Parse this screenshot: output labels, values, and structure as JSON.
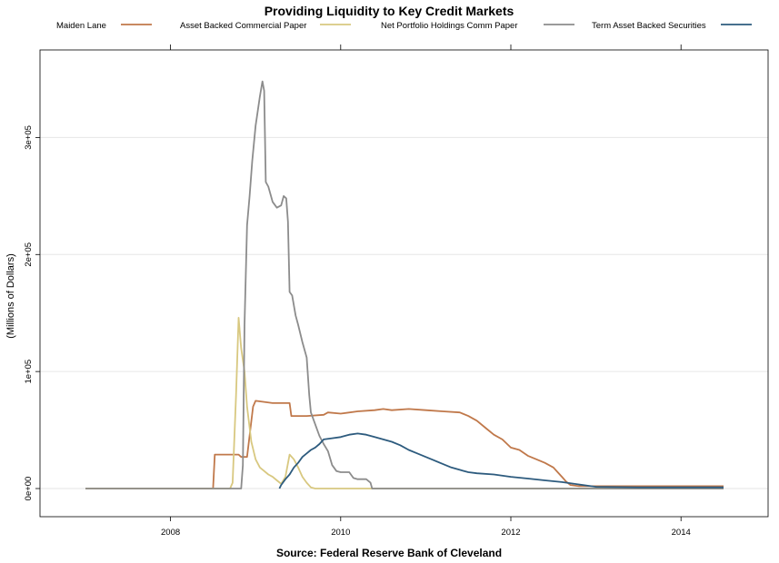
{
  "chart_data": {
    "type": "line",
    "title": "Providing Liquidity to Key Credit Markets",
    "ylabel": "(Millions of Dollars)",
    "source": "Source: Federal Reserve Bank of Cleveland",
    "xlim": [
      2007.0,
      2014.5
    ],
    "ylim": [
      0,
      350000
    ],
    "x_ticks": [
      {
        "value": 2008,
        "label": "2008"
      },
      {
        "value": 2010,
        "label": "2010"
      },
      {
        "value": 2012,
        "label": "2012"
      },
      {
        "value": 2014,
        "label": "2014"
      }
    ],
    "y_ticks": [
      {
        "value": 0,
        "label": "0e+00"
      },
      {
        "value": 100000,
        "label": "1e+05"
      },
      {
        "value": 200000,
        "label": "2e+05"
      },
      {
        "value": 300000,
        "label": "3e+05"
      }
    ],
    "grid": "horizontal",
    "legend_position": "top",
    "series": [
      {
        "name": "Maiden Lane",
        "color": "#c0784a",
        "points": [
          [
            2007.0,
            0
          ],
          [
            2008.5,
            0
          ],
          [
            2008.52,
            29000
          ],
          [
            2008.8,
            29000
          ],
          [
            2008.83,
            27000
          ],
          [
            2008.9,
            27000
          ],
          [
            2008.97,
            70000
          ],
          [
            2009.0,
            75000
          ],
          [
            2009.1,
            74000
          ],
          [
            2009.2,
            73000
          ],
          [
            2009.4,
            73000
          ],
          [
            2009.42,
            62000
          ],
          [
            2009.6,
            62000
          ],
          [
            2009.8,
            63000
          ],
          [
            2009.85,
            65000
          ],
          [
            2010.0,
            64000
          ],
          [
            2010.2,
            66000
          ],
          [
            2010.4,
            67000
          ],
          [
            2010.5,
            68000
          ],
          [
            2010.6,
            67000
          ],
          [
            2010.8,
            68000
          ],
          [
            2011.0,
            67000
          ],
          [
            2011.2,
            66000
          ],
          [
            2011.4,
            65000
          ],
          [
            2011.5,
            62000
          ],
          [
            2011.6,
            58000
          ],
          [
            2011.7,
            52000
          ],
          [
            2011.8,
            46000
          ],
          [
            2011.9,
            42000
          ],
          [
            2012.0,
            35000
          ],
          [
            2012.1,
            33000
          ],
          [
            2012.2,
            28000
          ],
          [
            2012.3,
            25000
          ],
          [
            2012.4,
            22000
          ],
          [
            2012.5,
            18000
          ],
          [
            2012.55,
            14000
          ],
          [
            2012.6,
            10000
          ],
          [
            2012.65,
            6000
          ],
          [
            2012.7,
            3000
          ],
          [
            2012.8,
            2000
          ],
          [
            2014.5,
            2000
          ]
        ]
      },
      {
        "name": "Asset Backed Commercial Paper",
        "color": "#d8c880",
        "points": [
          [
            2007.0,
            0
          ],
          [
            2008.7,
            0
          ],
          [
            2008.73,
            5000
          ],
          [
            2008.77,
            80000
          ],
          [
            2008.8,
            146000
          ],
          [
            2008.83,
            120000
          ],
          [
            2008.87,
            100000
          ],
          [
            2008.9,
            70000
          ],
          [
            2008.95,
            40000
          ],
          [
            2009.0,
            25000
          ],
          [
            2009.05,
            18000
          ],
          [
            2009.1,
            15000
          ],
          [
            2009.15,
            12000
          ],
          [
            2009.2,
            10000
          ],
          [
            2009.25,
            7000
          ],
          [
            2009.3,
            4000
          ],
          [
            2009.35,
            10000
          ],
          [
            2009.4,
            29000
          ],
          [
            2009.45,
            25000
          ],
          [
            2009.5,
            18000
          ],
          [
            2009.55,
            10000
          ],
          [
            2009.6,
            5000
          ],
          [
            2009.65,
            1000
          ],
          [
            2009.7,
            0
          ],
          [
            2014.5,
            0
          ]
        ]
      },
      {
        "name": "Net Portfolio Holdings Comm Paper",
        "color": "#8c8c8c",
        "points": [
          [
            2007.0,
            0
          ],
          [
            2008.83,
            0
          ],
          [
            2008.85,
            20000
          ],
          [
            2008.87,
            140000
          ],
          [
            2008.9,
            225000
          ],
          [
            2008.93,
            250000
          ],
          [
            2008.96,
            280000
          ],
          [
            2009.0,
            310000
          ],
          [
            2009.05,
            335000
          ],
          [
            2009.08,
            348000
          ],
          [
            2009.1,
            340000
          ],
          [
            2009.12,
            262000
          ],
          [
            2009.15,
            258000
          ],
          [
            2009.2,
            245000
          ],
          [
            2009.25,
            240000
          ],
          [
            2009.3,
            242000
          ],
          [
            2009.33,
            250000
          ],
          [
            2009.36,
            248000
          ],
          [
            2009.38,
            228000
          ],
          [
            2009.4,
            168000
          ],
          [
            2009.43,
            165000
          ],
          [
            2009.47,
            148000
          ],
          [
            2009.5,
            140000
          ],
          [
            2009.55,
            125000
          ],
          [
            2009.6,
            112000
          ],
          [
            2009.63,
            80000
          ],
          [
            2009.65,
            65000
          ],
          [
            2009.7,
            55000
          ],
          [
            2009.75,
            45000
          ],
          [
            2009.8,
            38000
          ],
          [
            2009.85,
            32000
          ],
          [
            2009.9,
            20000
          ],
          [
            2009.95,
            15000
          ],
          [
            2010.0,
            14000
          ],
          [
            2010.1,
            14000
          ],
          [
            2010.15,
            9000
          ],
          [
            2010.2,
            8000
          ],
          [
            2010.3,
            8000
          ],
          [
            2010.35,
            5000
          ],
          [
            2010.37,
            0
          ],
          [
            2014.5,
            0
          ]
        ]
      },
      {
        "name": "Term Asset Backed Securities",
        "color": "#2d5b7e",
        "points": [
          [
            2009.28,
            0
          ],
          [
            2009.3,
            3000
          ],
          [
            2009.35,
            8000
          ],
          [
            2009.4,
            12000
          ],
          [
            2009.45,
            18000
          ],
          [
            2009.5,
            22000
          ],
          [
            2009.55,
            27000
          ],
          [
            2009.6,
            30000
          ],
          [
            2009.65,
            33000
          ],
          [
            2009.7,
            35000
          ],
          [
            2009.75,
            38000
          ],
          [
            2009.8,
            42000
          ],
          [
            2009.9,
            43000
          ],
          [
            2010.0,
            44000
          ],
          [
            2010.1,
            46000
          ],
          [
            2010.2,
            47000
          ],
          [
            2010.3,
            46000
          ],
          [
            2010.4,
            44000
          ],
          [
            2010.5,
            42000
          ],
          [
            2010.6,
            40000
          ],
          [
            2010.7,
            37000
          ],
          [
            2010.8,
            33000
          ],
          [
            2010.9,
            30000
          ],
          [
            2011.0,
            27000
          ],
          [
            2011.1,
            24000
          ],
          [
            2011.2,
            21000
          ],
          [
            2011.3,
            18000
          ],
          [
            2011.4,
            16000
          ],
          [
            2011.5,
            14000
          ],
          [
            2011.6,
            13000
          ],
          [
            2011.8,
            12000
          ],
          [
            2012.0,
            10000
          ],
          [
            2012.2,
            8500
          ],
          [
            2012.4,
            7000
          ],
          [
            2012.6,
            5500
          ],
          [
            2012.8,
            3500
          ],
          [
            2013.0,
            1500
          ],
          [
            2013.5,
            1000
          ],
          [
            2014.5,
            1000
          ]
        ]
      }
    ]
  }
}
